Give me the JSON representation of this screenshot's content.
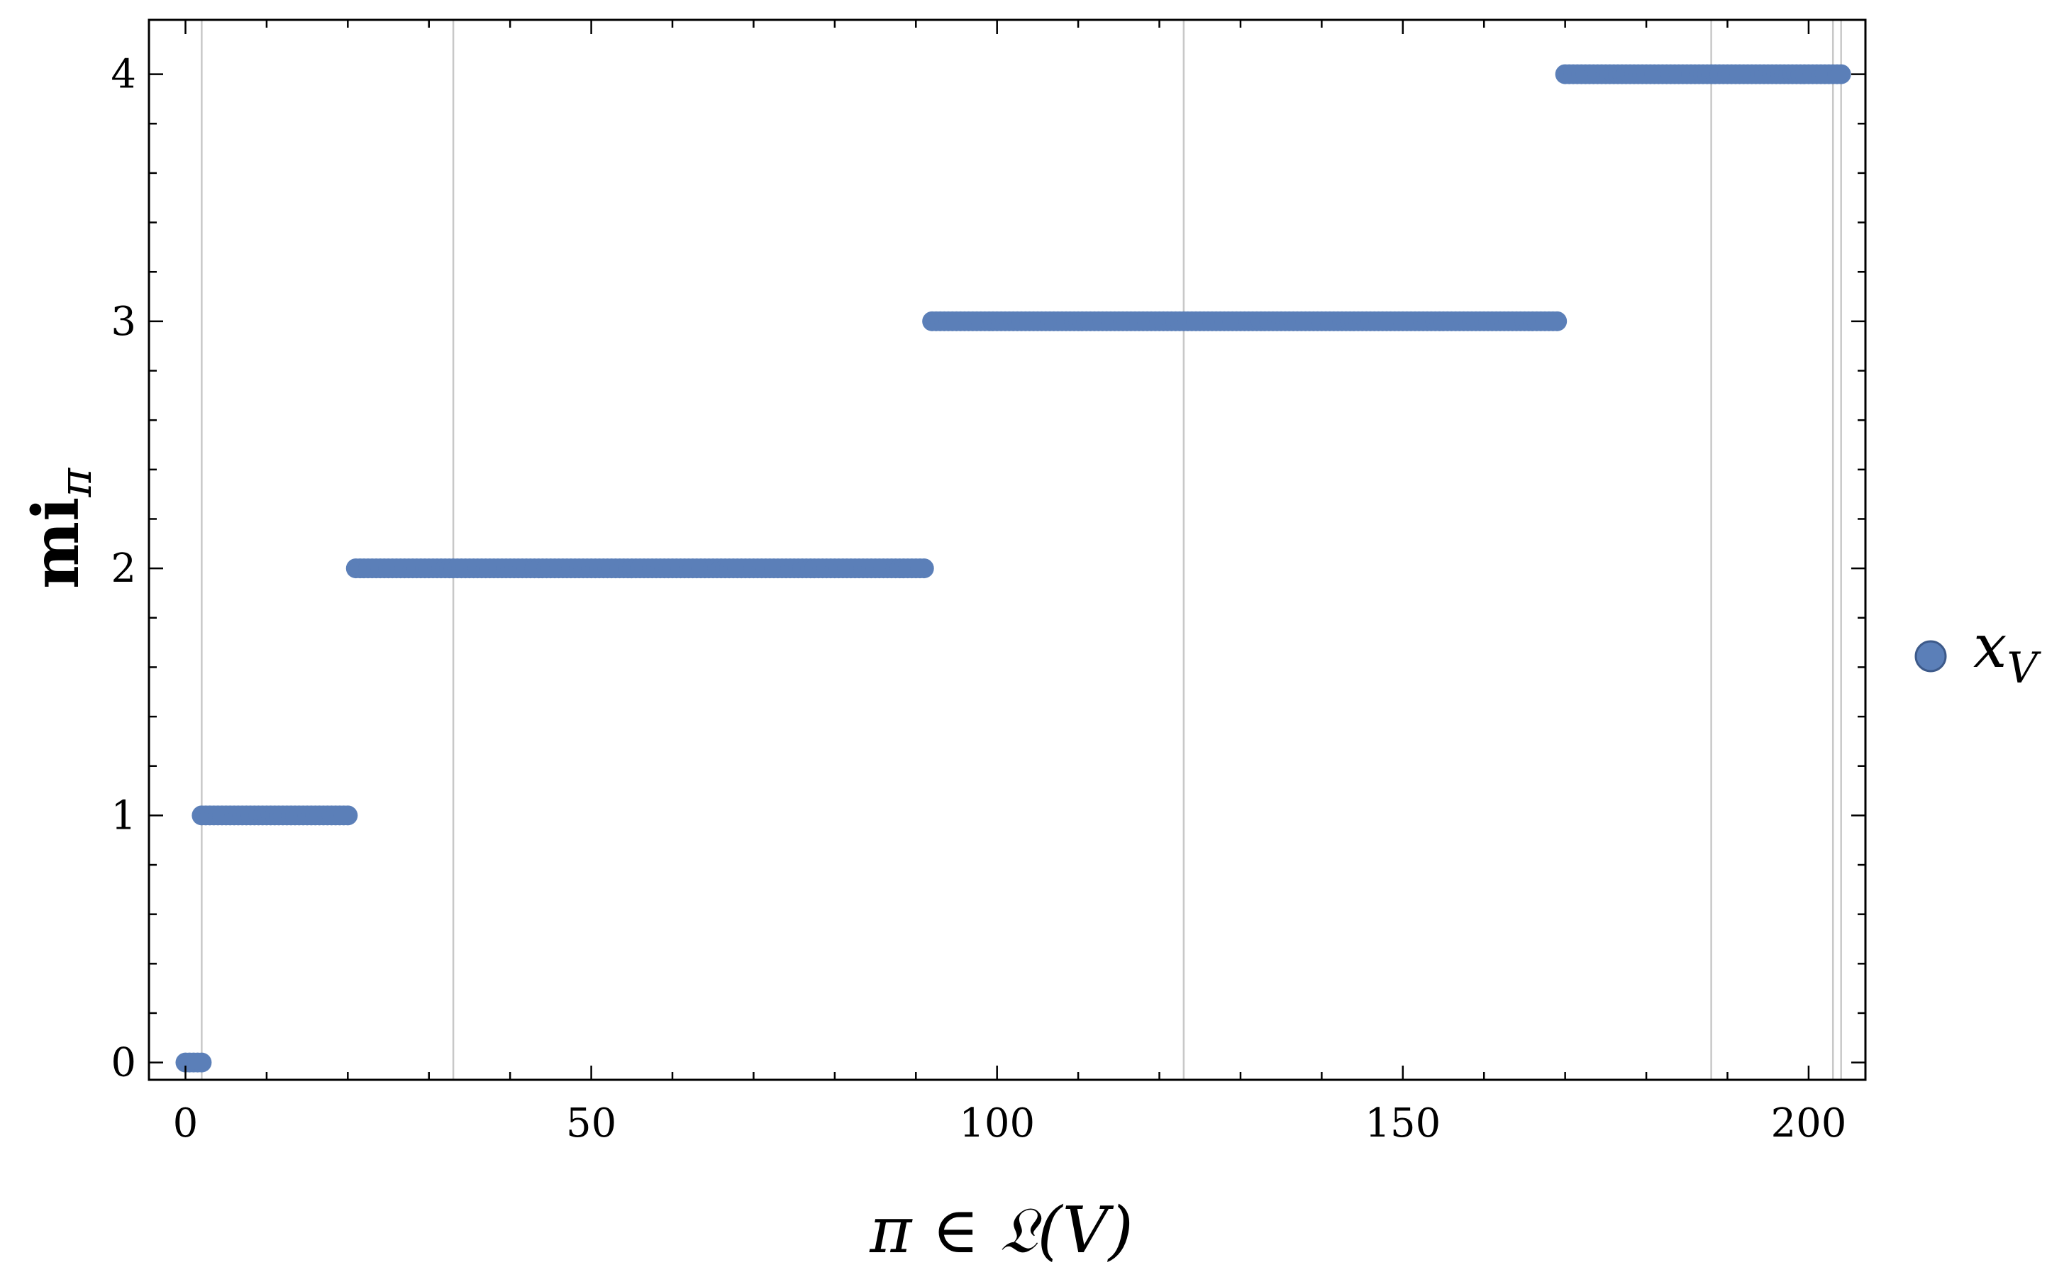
{
  "chart_data": {
    "type": "scatter",
    "xlabel": "π ∈ 𝔏(V)",
    "ylabel": "mi",
    "ylabel_sub": "π",
    "xlim": [
      -4.5,
      207
    ],
    "ylim": [
      -0.07,
      4.22
    ],
    "x_ticks": [
      0,
      50,
      100,
      150,
      200
    ],
    "y_ticks": [
      0,
      1,
      2,
      3,
      4
    ],
    "grid_x": [
      2,
      33,
      123,
      188,
      203,
      204
    ],
    "marker_color": "#5b7fb8",
    "grid_color": "#c8c8c8",
    "legend": {
      "position": "right",
      "label": "x",
      "label_sub": "V"
    },
    "series": [
      {
        "name": "x_V",
        "segments": [
          {
            "x_start": 0,
            "x_end": 2,
            "y": 0
          },
          {
            "x_start": 2,
            "x_end": 20,
            "y": 1
          },
          {
            "x_start": 21,
            "x_end": 91,
            "y": 2
          },
          {
            "x_start": 92,
            "x_end": 169,
            "y": 3
          },
          {
            "x_start": 170,
            "x_end": 204,
            "y": 4
          }
        ]
      }
    ]
  }
}
